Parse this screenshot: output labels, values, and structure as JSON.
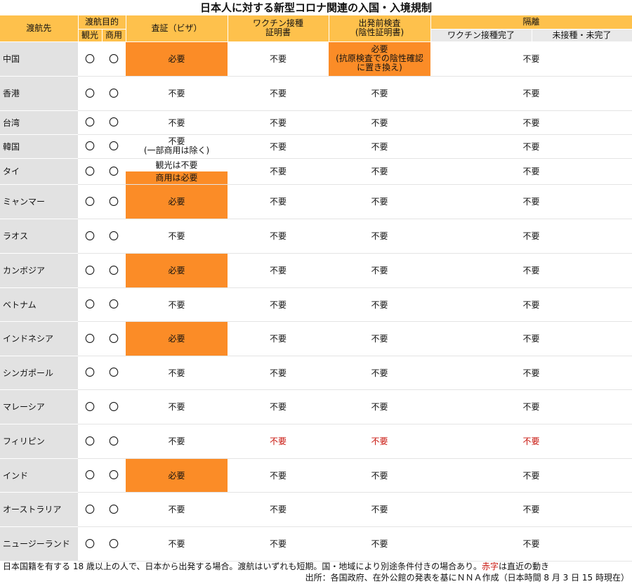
{
  "title": "日本人に対する新型コロナ関連の入国・入境規制",
  "headers": {
    "destination": "渡航先",
    "purpose": "渡航目的",
    "tourism": "観光",
    "business": "商用",
    "visa": "査証（ビザ）",
    "vaccine_cert_line1": "ワクチン接種",
    "vaccine_cert_line2": "証明書",
    "pretest_line1": "出発前検査",
    "pretest_line2": "(陰性証明書)",
    "quarantine": "隔離",
    "vaccinated": "ワクチン接種完了",
    "unvaccinated": "未接種・未完了"
  },
  "rows": [
    {
      "dest": "中国",
      "tourism": "〇",
      "business": "〇",
      "visa": "必要",
      "vaccine": "不要",
      "pretest": "必要\n(抗原検査での陰性確認\nに置き換え)",
      "quarantine": "不要"
    },
    {
      "dest": "香港",
      "tourism": "〇",
      "business": "〇",
      "visa": "不要",
      "vaccine": "不要",
      "pretest": "不要",
      "quarantine": "不要"
    },
    {
      "dest": "台湾",
      "tourism": "〇",
      "business": "〇",
      "visa": "不要",
      "vaccine": "不要",
      "pretest": "不要",
      "quarantine": "不要"
    },
    {
      "dest": "韓国",
      "tourism": "〇",
      "business": "〇",
      "visa": "不要\n(一部商用は除く)",
      "vaccine": "不要",
      "pretest": "不要",
      "quarantine": "不要"
    },
    {
      "dest": "タイ",
      "tourism": "〇",
      "business": "〇",
      "visa_top": "観光は不要",
      "visa_bottom": "商用は必要",
      "vaccine": "不要",
      "pretest": "不要",
      "quarantine": "不要"
    },
    {
      "dest": "ミャンマー",
      "tourism": "〇",
      "business": "〇",
      "visa": "必要",
      "vaccine": "不要",
      "pretest": "不要",
      "quarantine": "不要"
    },
    {
      "dest": "ラオス",
      "tourism": "〇",
      "business": "〇",
      "visa": "不要",
      "vaccine": "不要",
      "pretest": "不要",
      "quarantine": "不要"
    },
    {
      "dest": "カンボジア",
      "tourism": "〇",
      "business": "〇",
      "visa": "必要",
      "vaccine": "不要",
      "pretest": "不要",
      "quarantine": "不要"
    },
    {
      "dest": "ベトナム",
      "tourism": "〇",
      "business": "〇",
      "visa": "不要",
      "vaccine": "不要",
      "pretest": "不要",
      "quarantine": "不要"
    },
    {
      "dest": "インドネシア",
      "tourism": "〇",
      "business": "〇",
      "visa": "必要",
      "vaccine": "不要",
      "pretest": "不要",
      "quarantine": "不要"
    },
    {
      "dest": "シンガポール",
      "tourism": "〇",
      "business": "〇",
      "visa": "不要",
      "vaccine": "不要",
      "pretest": "不要",
      "quarantine": "不要"
    },
    {
      "dest": "マレーシア",
      "tourism": "〇",
      "business": "〇",
      "visa": "不要",
      "vaccine": "不要",
      "pretest": "不要",
      "quarantine": "不要"
    },
    {
      "dest": "フィリピン",
      "tourism": "〇",
      "business": "〇",
      "visa": "不要",
      "vaccine": "不要",
      "pretest": "不要",
      "quarantine": "不要"
    },
    {
      "dest": "インド",
      "tourism": "〇",
      "business": "〇",
      "visa": "必要",
      "vaccine": "不要",
      "pretest": "不要",
      "quarantine": "不要"
    },
    {
      "dest": "オーストラリア",
      "tourism": "〇",
      "business": "〇",
      "visa": "不要",
      "vaccine": "不要",
      "pretest": "不要",
      "quarantine": "不要"
    },
    {
      "dest": "ニュージーランド",
      "tourism": "〇",
      "business": "〇",
      "visa": "不要",
      "vaccine": "不要",
      "pretest": "不要",
      "quarantine": "不要"
    }
  ],
  "footer": {
    "note_pre": "日本国籍を有する 18 歳以上の人で、日本から出発する場合。渡航はいずれも短期。国・地域により別途条件付きの場合あり。",
    "note_red": "赤字",
    "note_post": "は直近の動き",
    "source": "出所：各国政府、在外公館の発表を基にＮＮＡ作成（日本時間 8 月 3 日 15 時現在）"
  },
  "colors": {
    "header": "#fec14c",
    "required": "#fb8c27",
    "recent_change": "#c8140c",
    "dest_bg": "#e2e2e2"
  }
}
